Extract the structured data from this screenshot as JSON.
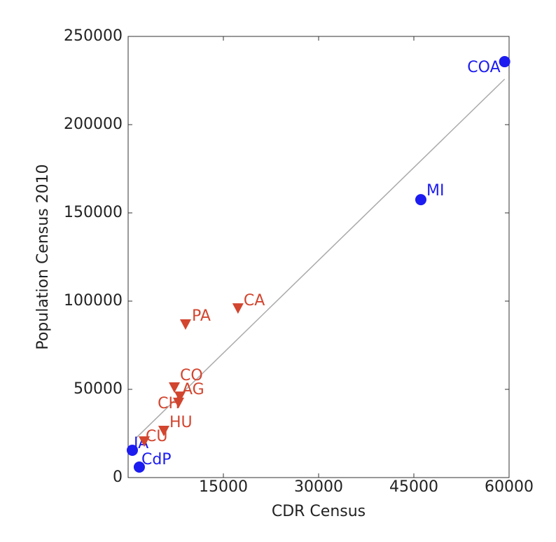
{
  "chart_data": {
    "type": "scatter",
    "x_label": "CDR Census",
    "y_label": "Population Census 2010",
    "xlim": [
      0,
      60000
    ],
    "ylim": [
      0,
      250000
    ],
    "xticks": [
      15000,
      30000,
      45000,
      60000
    ],
    "yticks": [
      0,
      50000,
      100000,
      150000,
      200000,
      250000
    ],
    "series": [
      {
        "color": "#1c1cf0",
        "marker": "circle",
        "x": [
          59300,
          46100,
          660,
          1760
        ],
        "values": [
          235700,
          157500,
          15500,
          5950
        ],
        "labels": [
          "COA",
          "MI",
          "JA",
          "CdP"
        ]
      },
      {
        "color": "#d2452f",
        "marker": "triangle-down",
        "x": [
          17300,
          9040,
          7280,
          8160,
          7940,
          5620,
          2540
        ],
        "values": [
          96000,
          86900,
          51200,
          46000,
          42500,
          26600,
          20600
        ],
        "labels": [
          "CA",
          "PA",
          "CO",
          "AG",
          "CH",
          "HU",
          "CU"
        ]
      }
    ],
    "fit_line": {
      "color": "#aaaaaa",
      "x": [
        1300,
        59300
      ],
      "y": [
        22600,
        225800
      ]
    }
  }
}
